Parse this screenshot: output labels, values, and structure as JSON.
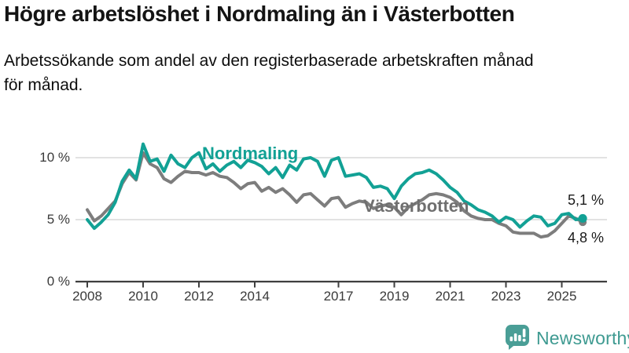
{
  "header": {
    "title": "Högre arbetslöshet i Nordmaling än i Västerbotten",
    "subtitle": "Arbetssökande som andel av den registerbaserade arbetskraften månad\nför månad."
  },
  "footer": {
    "brand": "Newsworthy"
  },
  "colors": {
    "nordmaling": "#12a195",
    "vasterbotten": "#7d7d7d",
    "vasterbotten_label": "#6f6f6f",
    "grid": "#d9d9d9",
    "axis": "#3f3f3f",
    "brand_teal": "#4a9e96"
  },
  "chart_data": {
    "type": "line",
    "title": "Högre arbetslöshet i Nordmaling än i Västerbotten",
    "xlabel": "",
    "ylabel": "",
    "grid": "horizontal",
    "legend_position": "inline-labels",
    "x_start": 2008,
    "x_step": 0.25,
    "x_ticks": [
      2008,
      2010,
      2012,
      2014,
      2017,
      2019,
      2021,
      2023,
      2025
    ],
    "y_ticks": [
      0,
      5,
      10
    ],
    "y_tick_suffix": " %",
    "ylim": [
      0,
      11.5
    ],
    "series": [
      {
        "name": "Nordmaling",
        "color": "#12a195",
        "values": [
          5.0,
          4.3,
          4.8,
          5.4,
          6.4,
          8.1,
          9.0,
          8.3,
          11.1,
          9.7,
          9.9,
          8.9,
          10.2,
          9.5,
          9.2,
          10.0,
          10.4,
          9.1,
          9.5,
          8.9,
          9.4,
          9.7,
          9.2,
          9.8,
          9.6,
          9.3,
          8.7,
          9.2,
          8.4,
          9.4,
          9.0,
          9.9,
          10.0,
          9.7,
          8.5,
          9.8,
          10.0,
          8.5,
          8.6,
          8.7,
          8.4,
          7.6,
          7.7,
          7.5,
          6.7,
          7.7,
          8.3,
          8.7,
          8.8,
          9.0,
          8.7,
          8.2,
          7.6,
          7.2,
          6.5,
          6.2,
          5.8,
          5.6,
          5.3,
          4.8,
          5.2,
          5.0,
          4.4,
          4.9,
          5.3,
          5.2,
          4.5,
          4.7,
          5.4,
          5.5,
          5.0,
          5.1
        ]
      },
      {
        "name": "Västerbotten",
        "color": "#7d7d7d",
        "values": [
          5.8,
          4.9,
          5.3,
          5.9,
          6.5,
          7.9,
          8.8,
          8.2,
          10.4,
          9.5,
          9.2,
          8.3,
          8.0,
          8.5,
          8.9,
          8.8,
          8.8,
          8.6,
          8.8,
          8.5,
          8.4,
          8.0,
          7.5,
          7.9,
          8.0,
          7.3,
          7.6,
          7.2,
          7.5,
          7.0,
          6.4,
          7.0,
          7.1,
          6.6,
          6.1,
          6.7,
          6.8,
          6.0,
          6.3,
          6.5,
          6.4,
          5.9,
          6.1,
          6.2,
          6.0,
          5.4,
          6.0,
          6.3,
          6.6,
          7.0,
          7.1,
          7.0,
          6.8,
          6.4,
          5.7,
          5.3,
          5.1,
          5.0,
          5.0,
          4.7,
          4.5,
          4.0,
          3.9,
          3.9,
          3.9,
          3.6,
          3.7,
          4.1,
          4.7,
          5.3,
          5.1,
          4.8
        ]
      }
    ],
    "end_labels": {
      "nordmaling": "5,1 %",
      "vasterbotten": "4,8 %"
    }
  }
}
